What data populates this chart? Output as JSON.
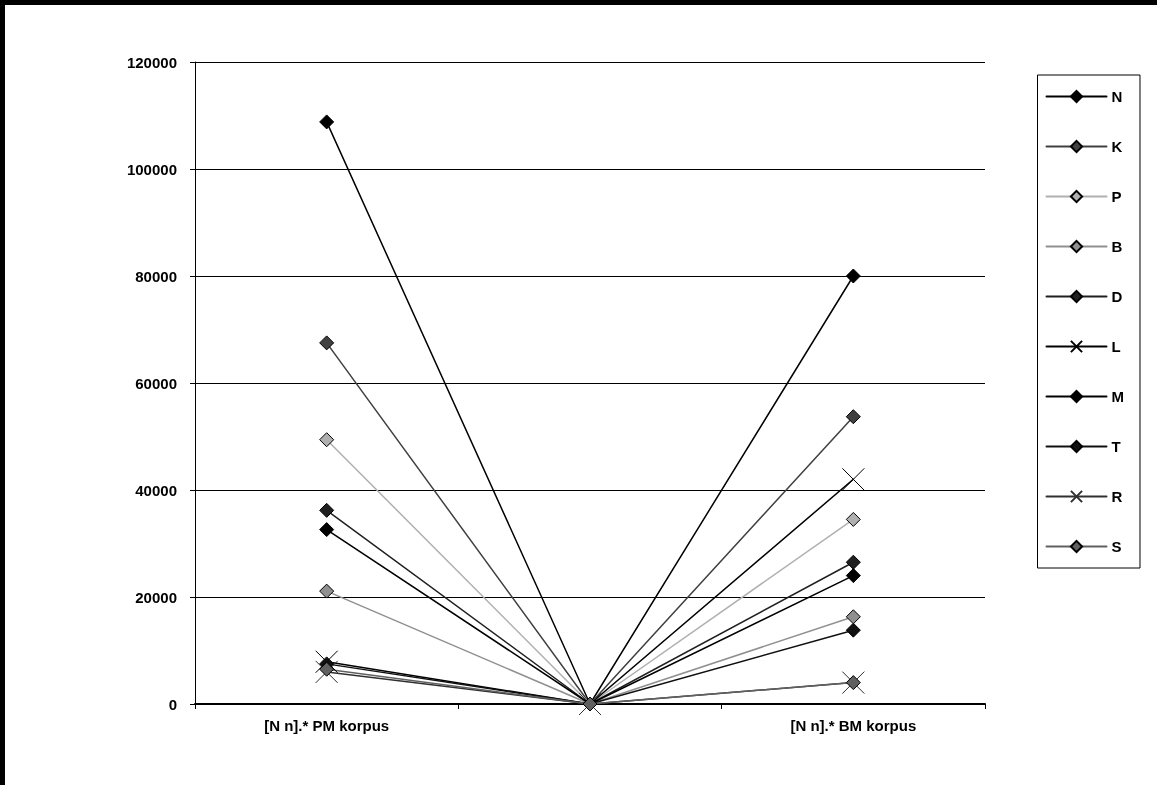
{
  "chart_data": {
    "type": "line",
    "categories": [
      "[N n].* PM korpus",
      null,
      "[N n].* BM korpus"
    ],
    "series": [
      {
        "name": "N",
        "color": "#000000",
        "marker": "diamond",
        "values": [
          108800,
          0,
          80000
        ]
      },
      {
        "name": "K",
        "color": "#404040",
        "marker": "diamond",
        "values": [
          67500,
          0,
          53700
        ]
      },
      {
        "name": "P",
        "color": "#b0b0b0",
        "marker": "diamond",
        "values": [
          49400,
          0,
          34500
        ]
      },
      {
        "name": "B",
        "color": "#909090",
        "marker": "diamond",
        "values": [
          21100,
          0,
          16300
        ]
      },
      {
        "name": "D",
        "color": "#202020",
        "marker": "diamond",
        "values": [
          36200,
          0,
          26500
        ]
      },
      {
        "name": "L",
        "color": "#000000",
        "marker": "cross",
        "values": [
          7900,
          0,
          42000
        ]
      },
      {
        "name": "M",
        "color": "#000000",
        "marker": "diamond",
        "values": [
          32600,
          0,
          24000
        ]
      },
      {
        "name": "T",
        "color": "#101010",
        "marker": "diamond",
        "values": [
          7500,
          0,
          13800
        ]
      },
      {
        "name": "R",
        "color": "#303030",
        "marker": "cross",
        "values": [
          6000,
          0,
          4000
        ]
      },
      {
        "name": "S",
        "color": "#606060",
        "marker": "diamond",
        "values": [
          6500,
          0,
          4000
        ]
      }
    ],
    "ylim": [
      0,
      120000
    ],
    "yticks": [
      0,
      20000,
      40000,
      60000,
      80000,
      100000,
      120000
    ],
    "grid": "y",
    "legend": "right"
  }
}
